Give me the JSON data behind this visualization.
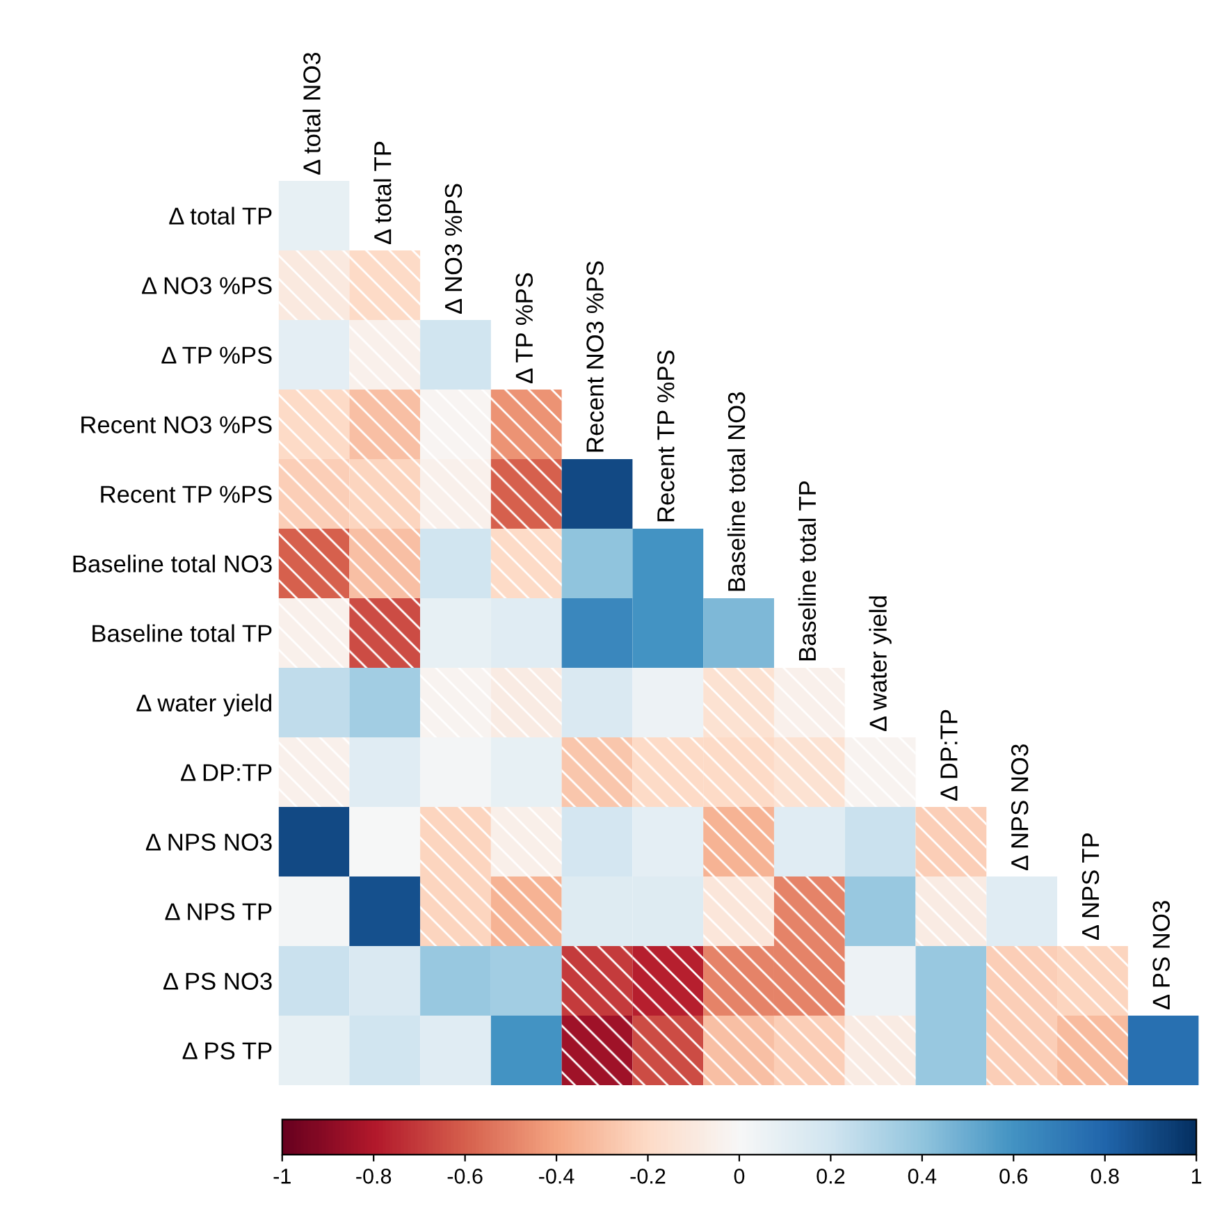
{
  "chart_data": {
    "type": "heatmap",
    "categories": [
      "Δ total NO3",
      "Δ total TP",
      "Δ NO3 %PS",
      "Δ TP %PS",
      "Recent NO3 %PS",
      "Recent TP %PS",
      "Baseline total NO3",
      "Baseline total TP",
      "Δ water yield",
      "Δ DP:TP",
      "Δ NPS NO3",
      "Δ NPS TP",
      "Δ PS NO3"
    ],
    "y_categories": [
      "Δ total TP",
      "Δ NO3 %PS",
      "Δ TP %PS",
      "Recent NO3 %PS",
      "Recent TP %PS",
      "Baseline total NO3",
      "Baseline total TP",
      "Δ water yield",
      "Δ DP:TP",
      "Δ NPS NO3",
      "Δ NPS TP",
      "Δ PS NO3",
      "Δ PS TP"
    ],
    "cells": [
      [
        0.08,
        null,
        null,
        null,
        null,
        null,
        null,
        null,
        null,
        null,
        null,
        null,
        null
      ],
      [
        -0.1,
        -0.2,
        null,
        null,
        null,
        null,
        null,
        null,
        null,
        null,
        null,
        null,
        null
      ],
      [
        0.1,
        -0.05,
        0.2,
        null,
        null,
        null,
        null,
        null,
        null,
        null,
        null,
        null,
        null
      ],
      [
        -0.2,
        -0.3,
        -0.02,
        -0.45,
        null,
        null,
        null,
        null,
        null,
        null,
        null,
        null,
        null
      ],
      [
        -0.25,
        -0.22,
        -0.05,
        -0.6,
        0.9,
        null,
        null,
        null,
        null,
        null,
        null,
        null,
        null
      ],
      [
        -0.6,
        -0.3,
        0.2,
        -0.2,
        0.4,
        0.6,
        null,
        null,
        null,
        null,
        null,
        null,
        null
      ],
      [
        -0.05,
        -0.65,
        0.08,
        0.12,
        0.65,
        0.6,
        0.45,
        null,
        null,
        null,
        null,
        null,
        null
      ],
      [
        0.25,
        0.35,
        -0.03,
        -0.08,
        0.15,
        0.05,
        -0.15,
        -0.05,
        null,
        null,
        null,
        null,
        null
      ],
      [
        -0.05,
        0.12,
        0.02,
        0.08,
        -0.28,
        -0.2,
        -0.2,
        -0.15,
        -0.03,
        null,
        null,
        null,
        null
      ],
      [
        0.9,
        0.0,
        -0.22,
        -0.06,
        0.18,
        0.1,
        -0.35,
        0.12,
        0.22,
        -0.25,
        null,
        null,
        null
      ],
      [
        0.02,
        0.88,
        -0.22,
        -0.35,
        0.13,
        0.13,
        -0.12,
        -0.5,
        0.38,
        -0.08,
        0.12,
        null,
        null
      ],
      [
        0.22,
        0.15,
        0.38,
        0.35,
        -0.7,
        -0.78,
        -0.5,
        -0.5,
        0.05,
        0.38,
        -0.25,
        -0.22,
        null
      ],
      [
        0.08,
        0.2,
        0.12,
        0.6,
        -0.85,
        -0.65,
        -0.3,
        -0.25,
        -0.08,
        0.38,
        -0.25,
        -0.32,
        0.75
      ]
    ],
    "clim": [
      -1,
      1
    ],
    "cticks": [
      -1,
      -0.8,
      -0.6,
      -0.4,
      -0.2,
      0,
      0.2,
      0.4,
      0.6,
      0.8,
      1
    ]
  }
}
